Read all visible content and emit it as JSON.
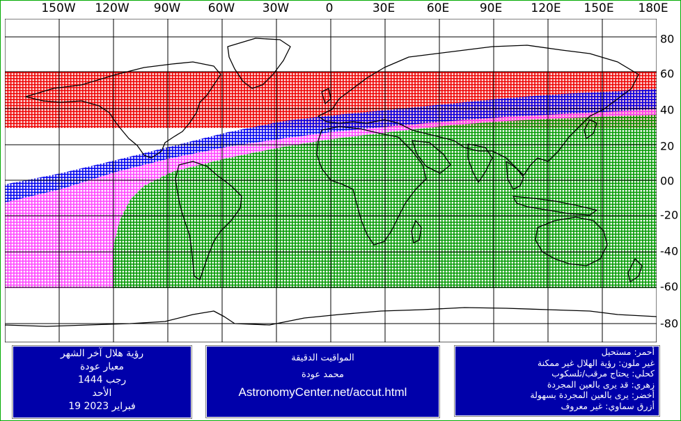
{
  "map": {
    "lon_labels": [
      "150W",
      "120W",
      "90W",
      "60W",
      "30W",
      "0",
      "30E",
      "60E",
      "90E",
      "120E",
      "150E",
      "180E"
    ],
    "lat_labels": [
      "80",
      "60",
      "40",
      "20",
      "00",
      "-20",
      "-40",
      "-60",
      "-80"
    ],
    "lon_range": [
      -180,
      180
    ],
    "lat_range": [
      -90,
      90
    ],
    "grid": true,
    "projection": "equirectangular",
    "colors": {
      "red": "#ee0000",
      "blue": "#0000ee",
      "magenta": "#ff44ff",
      "green": "#00aa00",
      "coast": "#000000",
      "grid": "#000000"
    },
    "visibility_zones": [
      {
        "key": "red",
        "desc": "cannot see",
        "lat_from": 40,
        "lat_to": 62
      },
      {
        "key": "blue",
        "desc": "needs optical aid",
        "boundary_top_at_lon": [
          [
            -180,
            0
          ],
          [
            0,
            33
          ],
          [
            180,
            53
          ]
        ],
        "boundary_bottom_at_lon": [
          [
            -180,
            -7
          ],
          [
            0,
            23
          ],
          [
            180,
            41
          ]
        ]
      },
      {
        "key": "magenta",
        "desc": "may be seen by naked eye",
        "boundary_bottom_at_lon": [
          [
            -180,
            -60
          ],
          [
            -120,
            -60
          ],
          [
            0,
            16
          ],
          [
            180,
            38
          ]
        ]
      },
      {
        "key": "green",
        "desc": "easily seen by naked eye",
        "boundary_top_at_lon": [
          [
            -120,
            -60
          ],
          [
            0,
            16
          ],
          [
            180,
            38
          ]
        ],
        "lat_bottom": -60
      }
    ]
  },
  "panels": {
    "left": {
      "title": "رؤية هلال آخر الشهر",
      "criterion": "معيار عودة",
      "month": "رجب 1444",
      "day": "الأحد",
      "date": "19 فبراير 2023"
    },
    "middle": {
      "title": "المواقيت الدقيقة",
      "author": "محمد عودة",
      "site": "AstronomyCenter.net/accut.html"
    },
    "right": {
      "legend": [
        "أحمر: مستحيل",
        "غير ملون: رؤية الهلال غير ممكنة",
        "كحلي: يحتاج مرقب/تلسكوب",
        "زهري: قد يرى بالعين المجردة",
        "أخضر: يرى بالعين المجردة بسهولة",
        "أزرق سماوي: غير معروف"
      ]
    }
  }
}
